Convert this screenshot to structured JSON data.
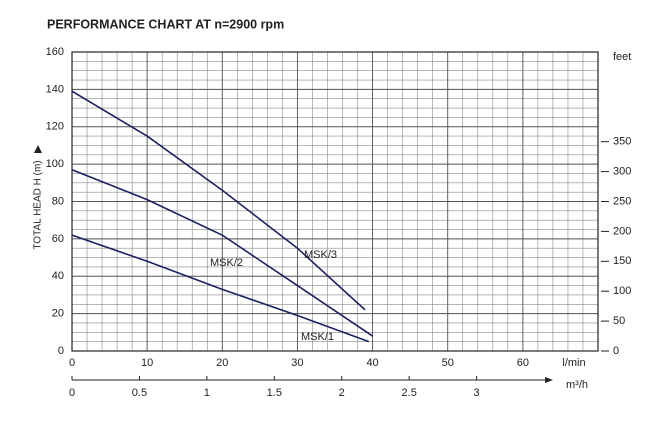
{
  "chart_data": {
    "type": "line",
    "title": "PERFORMANCE CHART AT n=2900 rpm",
    "ylabel": "TOTAL HEAD H (m)",
    "y2label": "feet",
    "xlabel": "l/min",
    "x2label": "m³/h",
    "xlim": [
      0,
      70
    ],
    "xticks": [
      0,
      10,
      20,
      30,
      40,
      50,
      60
    ],
    "ylim": [
      0,
      160
    ],
    "yticks": [
      0,
      20,
      40,
      60,
      80,
      100,
      120,
      140,
      160
    ],
    "y2lim": [
      0,
      500
    ],
    "y2ticks": [
      0,
      50,
      100,
      150,
      200,
      250,
      300,
      350
    ],
    "x2lim": [
      0,
      3.9
    ],
    "x2ticks": [
      0,
      0.5,
      1,
      1.5,
      2,
      2.5,
      3
    ],
    "grid": true,
    "series": [
      {
        "name": "MSK/3",
        "color": "#1c2260",
        "x": [
          0,
          10,
          20,
          30,
          39
        ],
        "values": [
          139,
          115,
          86,
          55,
          22
        ]
      },
      {
        "name": "MSK/2",
        "color": "#1c2260",
        "x": [
          0,
          10,
          20,
          30,
          40
        ],
        "values": [
          97,
          81,
          62,
          35,
          8
        ]
      },
      {
        "name": "MSK/1",
        "color": "#1c2260",
        "x": [
          0,
          10,
          20,
          30,
          39.5
        ],
        "values": [
          62,
          48,
          33,
          19,
          5
        ]
      }
    ]
  }
}
